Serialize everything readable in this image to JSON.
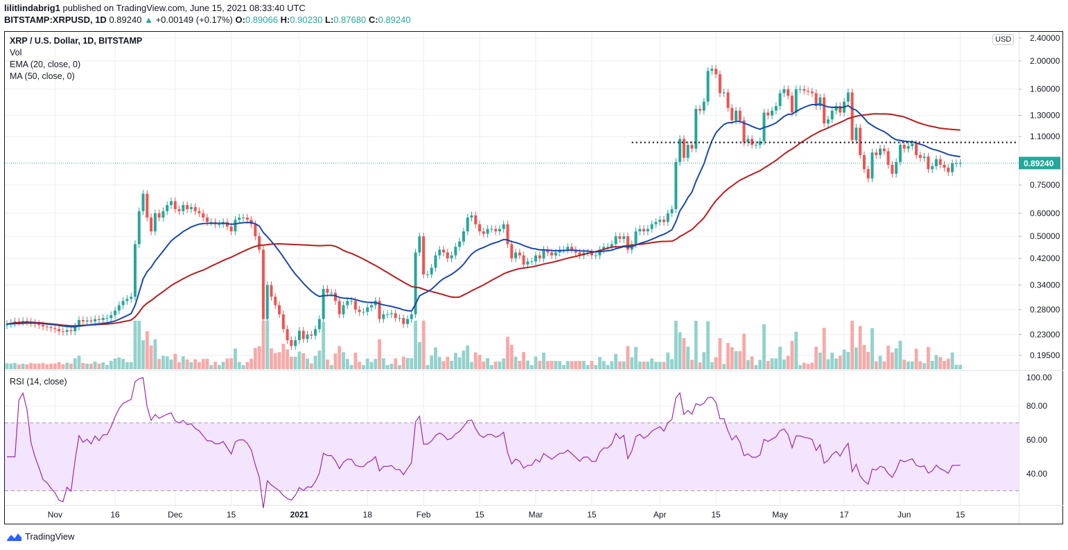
{
  "header": {
    "author": "lilitlindabrig1",
    "published": "published on TradingView.com, June 15, 2021 08:33:40 UTC",
    "symbol": "BITSTAMP:XRPUSD, 1D",
    "last": "0.89240",
    "change": "+0.00149 (+0.17%)",
    "o_label": "O:",
    "o": "0.89066",
    "h_label": "H:",
    "h": "0.90230",
    "l_label": "L:",
    "l": "0.87680",
    "c_label": "C:",
    "c": "0.89240"
  },
  "legend": {
    "title": "XRP / U.S. Dollar, 1D, BITSTAMP",
    "vol": "Vol",
    "ema": "EMA (20, close, 0)",
    "ma": "MA (50, close, 0)",
    "rsi": "RSI (14, close)"
  },
  "currency_badge": "USD",
  "brand": "TradingView",
  "colors": {
    "up": "#26a69a",
    "down": "#ef5350",
    "up_vol": "#92d2cc",
    "down_vol": "#f7a9a7",
    "ema": "#1848a8",
    "ma": "#b71c1c",
    "rsi": "#9c27b0",
    "rsi_band": "#f3e5fd",
    "last_price": "#26a69a"
  },
  "chart_data": {
    "type": "candlestick",
    "price_scale": "log",
    "grid": true,
    "price_ticks": [
      "2.40000",
      "2.00000",
      "1.60000",
      "1.30000",
      "1.10000",
      "0.75000",
      "0.60000",
      "0.50000",
      "0.42000",
      "0.34000",
      "0.28000",
      "0.23000",
      "0.19500"
    ],
    "last_price_label": "0.89240",
    "last_price": 0.8924,
    "horizontal_level": 1.05,
    "rsi_ticks": [
      "100.00",
      "80.00",
      "60.00",
      "40.00"
    ],
    "rsi_band": [
      30,
      70
    ],
    "time_ticks": [
      {
        "label": "Nov",
        "date": "2020-11-01"
      },
      {
        "label": "16",
        "date": "2020-11-16"
      },
      {
        "label": "Dec",
        "date": "2020-12-01"
      },
      {
        "label": "15",
        "date": "2020-12-15"
      },
      {
        "label": "2021",
        "date": "2021-01-01"
      },
      {
        "label": "18",
        "date": "2021-01-18"
      },
      {
        "label": "Feb",
        "date": "2021-02-01"
      },
      {
        "label": "15",
        "date": "2021-02-15"
      },
      {
        "label": "Mar",
        "date": "2021-03-01"
      },
      {
        "label": "15",
        "date": "2021-03-15"
      },
      {
        "label": "Apr",
        "date": "2021-04-01"
      },
      {
        "label": "15",
        "date": "2021-04-15"
      },
      {
        "label": "May",
        "date": "2021-05-01"
      },
      {
        "label": "17",
        "date": "2021-05-17"
      },
      {
        "label": "Jun",
        "date": "2021-06-01"
      },
      {
        "label": "15",
        "date": "2021-06-15"
      }
    ],
    "daily_closes": [
      {
        "month": "2020-10",
        "first_day": 20,
        "closes": [
          0.25,
          0.252,
          0.255,
          0.254,
          0.256,
          0.255,
          0.252,
          0.25,
          0.248,
          0.245,
          0.244,
          0.242
        ]
      },
      {
        "month": "2020-11",
        "first_day": 1,
        "closes": [
          0.24,
          0.236,
          0.235,
          0.238,
          0.236,
          0.245,
          0.258,
          0.255,
          0.257,
          0.255,
          0.26,
          0.258,
          0.262,
          0.262,
          0.268,
          0.278,
          0.29,
          0.3,
          0.305,
          0.31,
          0.47,
          0.61,
          0.7,
          0.58,
          0.52,
          0.6,
          0.58,
          0.61,
          0.64,
          0.66
        ]
      },
      {
        "month": "2020-12",
        "first_day": 1,
        "closes": [
          0.62,
          0.61,
          0.64,
          0.62,
          0.63,
          0.61,
          0.6,
          0.58,
          0.56,
          0.56,
          0.55,
          0.55,
          0.56,
          0.54,
          0.52,
          0.57,
          0.58,
          0.58,
          0.57,
          0.55,
          0.5,
          0.45,
          0.26,
          0.34,
          0.31,
          0.29,
          0.27,
          0.24,
          0.22,
          0.21,
          0.22
        ]
      },
      {
        "month": "2021-01",
        "first_day": 1,
        "closes": [
          0.237,
          0.222,
          0.23,
          0.228,
          0.24,
          0.26,
          0.33,
          0.32,
          0.32,
          0.3,
          0.27,
          0.29,
          0.3,
          0.3,
          0.28,
          0.275,
          0.275,
          0.285,
          0.29,
          0.3,
          0.26,
          0.27,
          0.27,
          0.272,
          0.262,
          0.262,
          0.25,
          0.26,
          0.27,
          0.44,
          0.5
        ]
      },
      {
        "month": "2021-02",
        "first_day": 1,
        "closes": [
          0.37,
          0.37,
          0.39,
          0.43,
          0.45,
          0.44,
          0.42,
          0.43,
          0.46,
          0.48,
          0.52,
          0.58,
          0.59,
          0.55,
          0.52,
          0.51,
          0.53,
          0.53,
          0.52,
          0.53,
          0.55,
          0.47,
          0.42,
          0.44,
          0.43,
          0.4,
          0.41,
          0.41
        ]
      },
      {
        "month": "2021-03",
        "first_day": 1,
        "closes": [
          0.43,
          0.42,
          0.45,
          0.44,
          0.43,
          0.44,
          0.45,
          0.45,
          0.46,
          0.45,
          0.44,
          0.43,
          0.44,
          0.44,
          0.43,
          0.43,
          0.45,
          0.46,
          0.46,
          0.47,
          0.5,
          0.49,
          0.5,
          0.45,
          0.47,
          0.52,
          0.53,
          0.52,
          0.53,
          0.55,
          0.56
        ]
      },
      {
        "month": "2021-04",
        "first_day": 1,
        "closes": [
          0.57,
          0.56,
          0.6,
          0.62,
          0.9,
          1.08,
          0.93,
          1.03,
          1.0,
          1.37,
          1.35,
          1.45,
          1.85,
          1.88,
          1.8,
          1.55,
          1.56,
          1.38,
          1.25,
          1.35,
          1.25,
          1.05,
          1.08,
          1.03,
          1.03,
          1.06,
          1.33,
          1.3,
          1.35,
          1.4
        ]
      },
      {
        "month": "2021-05",
        "first_day": 1,
        "closes": [
          1.55,
          1.6,
          1.52,
          1.33,
          1.6,
          1.6,
          1.58,
          1.57,
          1.55,
          1.4,
          1.5,
          1.22,
          1.26,
          1.35,
          1.4,
          1.33,
          1.45,
          1.56,
          1.07,
          1.18,
          0.95,
          0.85,
          0.79,
          0.97,
          0.95,
          1.0,
          0.98,
          0.88,
          0.82,
          0.9,
          1.03
        ]
      },
      {
        "month": "2021-06",
        "first_day": 1,
        "closes": [
          1.0,
          1.02,
          1.04,
          0.95,
          0.93,
          0.94,
          0.85,
          0.87,
          0.92,
          0.88,
          0.86,
          0.83,
          0.89,
          0.891,
          0.8924
        ]
      }
    ]
  }
}
